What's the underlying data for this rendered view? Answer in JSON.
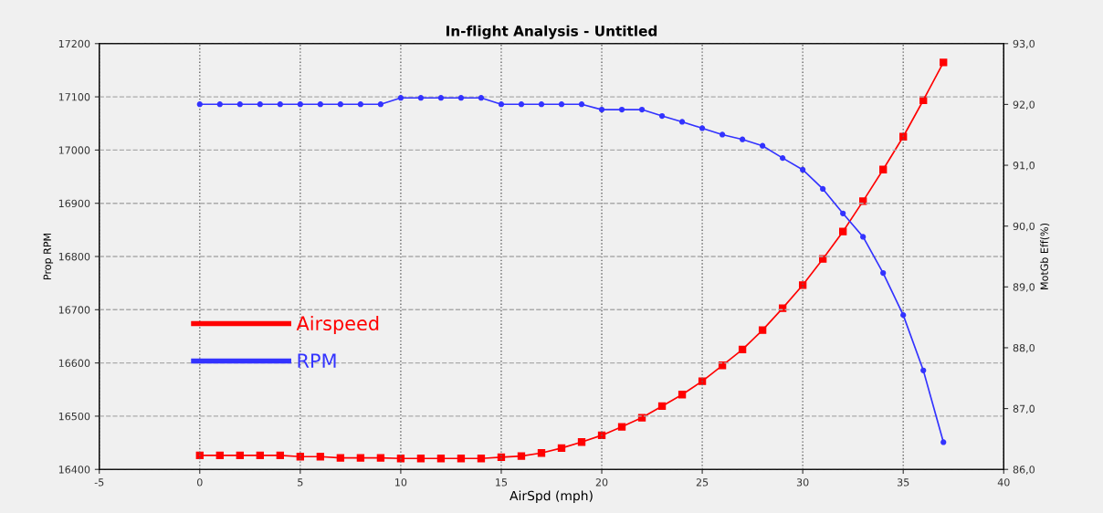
{
  "chart_data": {
    "type": "line",
    "title": "In-flight Analysis - Untitled",
    "xlabel": "AirSpd (mph)",
    "ylabel": "Prop RPM",
    "y2label": "MotGb Eff(%)",
    "x": [
      0,
      1,
      2,
      3,
      4,
      5,
      6,
      7,
      8,
      9,
      10,
      11,
      12,
      13,
      14,
      15,
      16,
      17,
      18,
      19,
      20,
      21,
      22,
      23,
      24,
      25,
      26,
      27,
      28,
      29,
      30,
      31,
      32,
      33,
      34,
      35,
      36,
      37
    ],
    "series": [
      {
        "name": "Airspeed",
        "color": "#ff0000",
        "axis": "y2",
        "marker": "square",
        "values": [
          86.23,
          86.23,
          86.23,
          86.23,
          86.23,
          86.21,
          86.21,
          86.19,
          86.19,
          86.19,
          86.18,
          86.18,
          86.18,
          86.18,
          86.18,
          86.2,
          86.22,
          86.27,
          86.35,
          86.45,
          86.56,
          86.7,
          86.85,
          87.04,
          87.23,
          87.45,
          87.71,
          87.97,
          88.29,
          88.65,
          89.03,
          89.46,
          89.91,
          90.41,
          90.93,
          91.47,
          92.07,
          92.69
        ]
      },
      {
        "name": "RPM",
        "color": "#3333ff",
        "marker": "circle",
        "values": [
          17086,
          17086,
          17086,
          17086,
          17086,
          17086,
          17086,
          17086,
          17086,
          17086,
          17098,
          17098,
          17098,
          17098,
          17098,
          17086,
          17086,
          17086,
          17086,
          17086,
          17076,
          17076,
          17076,
          17064,
          17053,
          17041,
          17029,
          17020,
          17008,
          16985,
          16963,
          16927,
          16881,
          16837,
          16769,
          16690,
          16586,
          16451
        ]
      }
    ],
    "xlim": [
      -5,
      40
    ],
    "xticks": [
      -5,
      0,
      5,
      10,
      15,
      20,
      25,
      30,
      35,
      40
    ],
    "ylim": [
      16400,
      17200
    ],
    "yticks": [
      16400,
      16500,
      16600,
      16700,
      16800,
      16900,
      17000,
      17100,
      17200
    ],
    "y2lim": [
      86,
      93
    ],
    "y2ticks": [
      {
        "value": 86,
        "label": "86,0"
      },
      {
        "value": 87,
        "label": "87,0"
      },
      {
        "value": 88,
        "label": "88,0"
      },
      {
        "value": 89,
        "label": "89,0"
      },
      {
        "value": 90,
        "label": "90,0"
      },
      {
        "value": 91,
        "label": "91,0"
      },
      {
        "value": 92,
        "label": "92,0"
      },
      {
        "value": 93,
        "label": "93,0"
      }
    ],
    "grid": true,
    "legend": "center left",
    "line_style": "solid"
  }
}
